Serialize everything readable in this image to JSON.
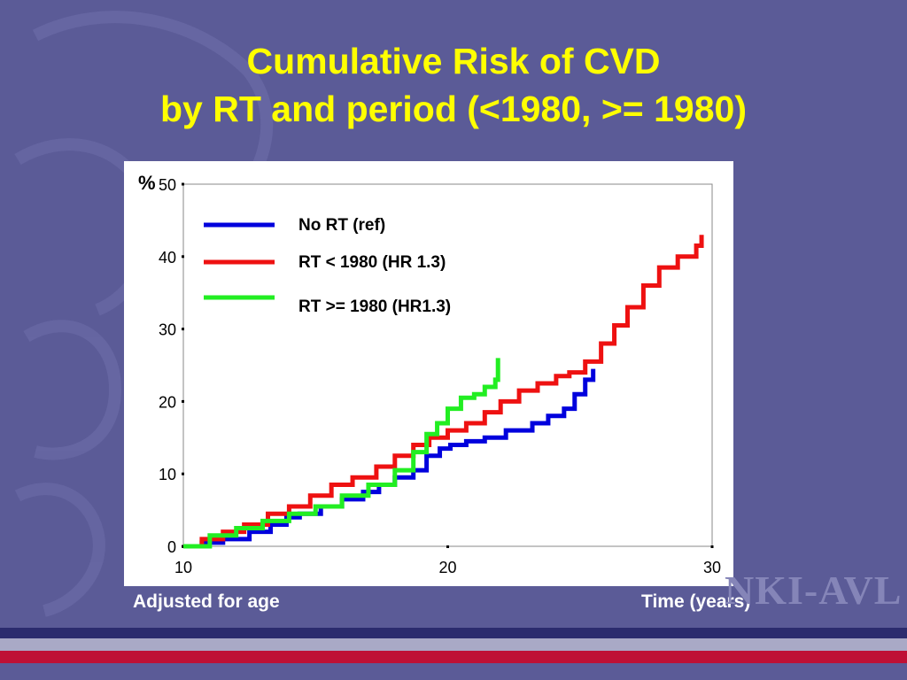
{
  "slide": {
    "title_line1": "Cumulative Risk of CVD",
    "title_line2": "by RT and period (<1980, >= 1980)",
    "note_left": "Adjusted for age",
    "note_right": "Time (years)",
    "logo_text": "NKI-AVL",
    "colors": {
      "background": "#5b5b97",
      "title": "#ffff00",
      "stripe_dark": "#2c2c6e",
      "stripe_light": "#a9a9c6",
      "stripe_red": "#bf1035"
    }
  },
  "chart_data": {
    "type": "line",
    "ylabel": "%",
    "xlim": [
      10,
      30
    ],
    "ylim": [
      0,
      50
    ],
    "xticks": [
      10,
      20,
      30
    ],
    "yticks": [
      0,
      10,
      20,
      30,
      40,
      50
    ],
    "grid": false,
    "legend_position": "top-left",
    "series": [
      {
        "name": "No RT (ref)",
        "color": "#0000dd",
        "x": [
          10,
          10.7,
          11.5,
          12.5,
          13.3,
          13.9,
          14.4,
          15.2,
          16.0,
          16.8,
          17.4,
          18.0,
          18.7,
          19.2,
          19.7,
          20.1,
          20.7,
          21.4,
          22.2,
          22.8,
          23.2,
          23.8,
          24.4,
          24.8,
          25.2,
          25.5
        ],
        "y": [
          0,
          0.5,
          1,
          2,
          3,
          4,
          4.5,
          5.5,
          6.5,
          7.5,
          8.5,
          9.5,
          10.5,
          12.5,
          13.5,
          14,
          14.5,
          15,
          16,
          16,
          17,
          18,
          19,
          21,
          23,
          24.5
        ]
      },
      {
        "name": "RT < 1980 (HR 1.3)",
        "color": "#ee1111",
        "x": [
          10,
          10.7,
          11.5,
          12.3,
          13.2,
          14.0,
          14.8,
          15.6,
          16.4,
          17.3,
          18.0,
          18.7,
          19.3,
          20.0,
          20.7,
          21.4,
          22.0,
          22.7,
          23.4,
          24.1,
          24.6,
          25.2,
          25.8,
          26.3,
          26.8,
          27.4,
          28.0,
          28.7,
          29.4,
          29.6
        ],
        "y": [
          0,
          1,
          2,
          3,
          4.5,
          5.5,
          7,
          8.5,
          9.5,
          11,
          12.5,
          14,
          15,
          16,
          17,
          18.5,
          20,
          21.5,
          22.5,
          23.5,
          24,
          25.5,
          28,
          30.5,
          33,
          36,
          38.5,
          40,
          41.5,
          43
        ]
      },
      {
        "name": "RT >= 1980 (HR1.3)",
        "color": "#22ee22",
        "x": [
          10,
          11.0,
          12.0,
          13.0,
          14.0,
          15.0,
          16.0,
          17.0,
          18.0,
          18.7,
          19.2,
          19.6,
          20.0,
          20.5,
          21.0,
          21.4,
          21.8,
          21.9
        ],
        "y": [
          0,
          1.5,
          2.5,
          3.5,
          4.5,
          5.5,
          7,
          8.5,
          10.5,
          13,
          15.5,
          17,
          19,
          20.5,
          21,
          22,
          23,
          26
        ]
      }
    ]
  }
}
